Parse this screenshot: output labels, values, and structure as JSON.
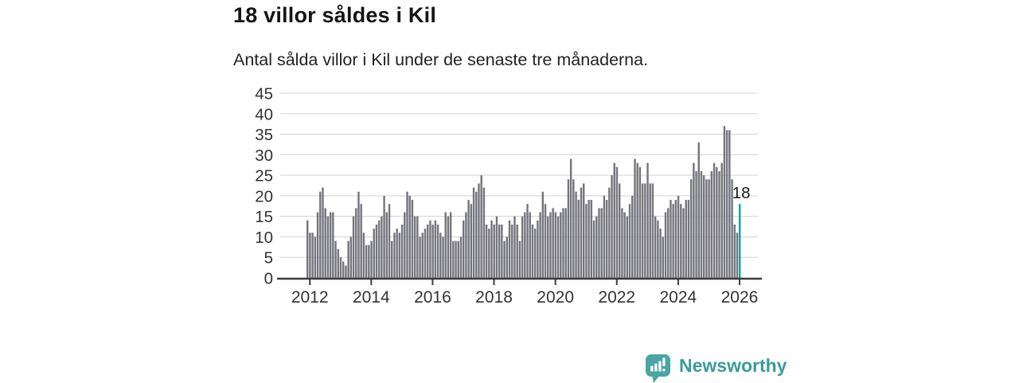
{
  "header": {
    "title": "18 villor såldes i Kil",
    "subtitle": "Antal sålda villor i Kil under de senaste tre månaderna."
  },
  "chart_data": {
    "type": "bar",
    "title": "18 villor såldes i Kil",
    "subtitle": "Antal sålda villor i Kil under de senaste tre månaderna.",
    "x_tick_labels": [
      "2012",
      "2014",
      "2016",
      "2018",
      "2020",
      "2022",
      "2024",
      "2026"
    ],
    "months_per_x_tick": 24,
    "y_ticks": [
      0,
      5,
      10,
      15,
      20,
      25,
      30,
      35,
      40,
      45
    ],
    "ylim": [
      0,
      45
    ],
    "grid": "horizontal",
    "legend": "none",
    "values": [
      14,
      11,
      11,
      10,
      16,
      21,
      22,
      17,
      15,
      16,
      16,
      9,
      7,
      5,
      4,
      3,
      9,
      10,
      15,
      17,
      21,
      18,
      11,
      8,
      8,
      9,
      12,
      13,
      14,
      15,
      20,
      16,
      18,
      9,
      11,
      12,
      11,
      13,
      16,
      21,
      20,
      19,
      15,
      15,
      10,
      11,
      12,
      13,
      14,
      13,
      14,
      13,
      11,
      10,
      16,
      15,
      16,
      9,
      9,
      9,
      10,
      14,
      16,
      19,
      18,
      22,
      21,
      23,
      25,
      22,
      13,
      12,
      14,
      13,
      15,
      13,
      13,
      9,
      10,
      14,
      13,
      15,
      13,
      9,
      15,
      16,
      18,
      16,
      13,
      12,
      14,
      16,
      21,
      18,
      15,
      16,
      17,
      16,
      15,
      16,
      17,
      17,
      24,
      29,
      24,
      21,
      19,
      22,
      23,
      18,
      19,
      19,
      14,
      15,
      17,
      17,
      20,
      19,
      22,
      25,
      28,
      27,
      23,
      17,
      16,
      15,
      18,
      20,
      29,
      28,
      27,
      23,
      23,
      28,
      23,
      23,
      15,
      14,
      12,
      10,
      16,
      17,
      19,
      18,
      19,
      20,
      18,
      17,
      19,
      19,
      24,
      28,
      26,
      33,
      26,
      25,
      24,
      24,
      26,
      28,
      27,
      26,
      28,
      37,
      36,
      36,
      24,
      13,
      11,
      18
    ],
    "highlight": {
      "index": 169,
      "value": 18,
      "label": "18"
    },
    "colors": {
      "bar": "#74747c",
      "highlight": "#00a49f",
      "grid": "#dcdcdc",
      "axis": "#3c3c3c",
      "tick_text": "#333333",
      "annotation_text": "#1a1a1a"
    }
  },
  "footer": {
    "brand": "Newsworthy",
    "logo_icon": "newsworthy-speech-bubble-chart-icon",
    "colors": {
      "icon": "#4aa5a3",
      "icon_glyph": "#ffffff",
      "text": "#3a9b9b"
    }
  }
}
